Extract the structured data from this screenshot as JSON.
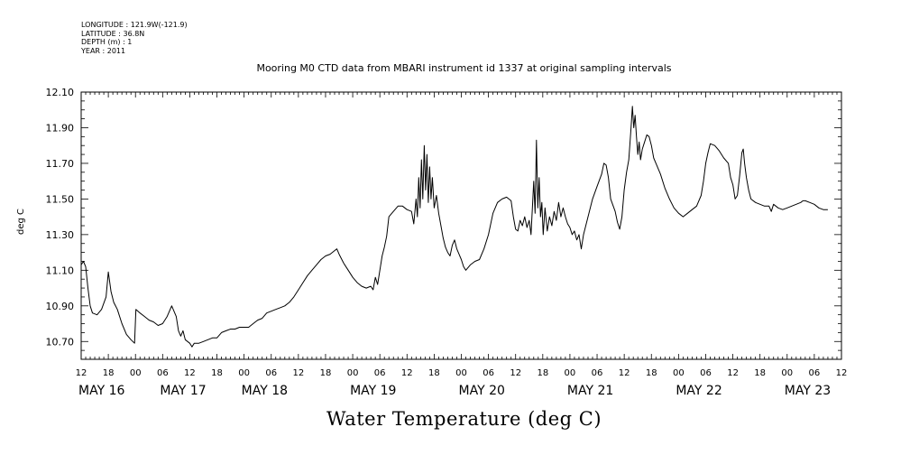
{
  "meta": {
    "longitude": "LONGITUDE : 121.9W(-121.9)",
    "latitude": "LATITUDE : 36.8N",
    "depth": "DEPTH (m) : 1",
    "year": "YEAR : 2011"
  },
  "chart_data": {
    "type": "line",
    "title": "Mooring M0 CTD data from MBARI instrument id 1337 at original sampling intervals",
    "xlabel": "Water Temperature (deg C)",
    "ylabel": "deg C",
    "ylim": [
      10.6,
      12.1
    ],
    "yticks": [
      "10.70",
      "10.90",
      "11.10",
      "11.30",
      "11.50",
      "11.70",
      "11.90",
      "12.10"
    ],
    "xlim_hours": [
      0,
      168
    ],
    "xtick_hour_labels": [
      "12",
      "18",
      "00",
      "06",
      "12",
      "18",
      "00",
      "06",
      "12",
      "18",
      "00",
      "06",
      "12",
      "18",
      "00",
      "06",
      "12",
      "18",
      "00",
      "06",
      "12",
      "18",
      "00",
      "06",
      "12",
      "18",
      "00",
      "06",
      "12"
    ],
    "date_labels": [
      {
        "label": "MAY 16",
        "hour": 0
      },
      {
        "label": "MAY 17",
        "hour": 18
      },
      {
        "label": "MAY 18",
        "hour": 36
      },
      {
        "label": "MAY 19",
        "hour": 60
      },
      {
        "label": "MAY 20",
        "hour": 84
      },
      {
        "label": "MAY 21",
        "hour": 108
      },
      {
        "label": "MAY 22",
        "hour": 132
      },
      {
        "label": "MAY 23",
        "hour": 156
      }
    ],
    "grid": false,
    "series": [
      {
        "color": "#000000",
        "points": [
          [
            0,
            11.13
          ],
          [
            0.5,
            11.15
          ],
          [
            1,
            11.12
          ],
          [
            1.5,
            11.0
          ],
          [
            2,
            10.9
          ],
          [
            2.5,
            10.86
          ],
          [
            3.5,
            10.85
          ],
          [
            4.5,
            10.88
          ],
          [
            5.5,
            10.95
          ],
          [
            6,
            11.09
          ],
          [
            6.6,
            10.98
          ],
          [
            7.2,
            10.92
          ],
          [
            8,
            10.88
          ],
          [
            9,
            10.8
          ],
          [
            10,
            10.74
          ],
          [
            11,
            10.71
          ],
          [
            11.8,
            10.69
          ],
          [
            12.1,
            10.88
          ],
          [
            13,
            10.86
          ],
          [
            14,
            10.84
          ],
          [
            15,
            10.82
          ],
          [
            16,
            10.81
          ],
          [
            17,
            10.79
          ],
          [
            18,
            10.8
          ],
          [
            19,
            10.84
          ],
          [
            20,
            10.9
          ],
          [
            21,
            10.84
          ],
          [
            21.5,
            10.76
          ],
          [
            22,
            10.73
          ],
          [
            22.5,
            10.76
          ],
          [
            23,
            10.71
          ],
          [
            24,
            10.69
          ],
          [
            24.5,
            10.67
          ],
          [
            25,
            10.69
          ],
          [
            26,
            10.69
          ],
          [
            27,
            10.7
          ],
          [
            28,
            10.71
          ],
          [
            29,
            10.72
          ],
          [
            30,
            10.72
          ],
          [
            31,
            10.75
          ],
          [
            32,
            10.76
          ],
          [
            33,
            10.77
          ],
          [
            34,
            10.77
          ],
          [
            35,
            10.78
          ],
          [
            36,
            10.78
          ],
          [
            37,
            10.78
          ],
          [
            38,
            10.8
          ],
          [
            39,
            10.82
          ],
          [
            40,
            10.83
          ],
          [
            41,
            10.86
          ],
          [
            42,
            10.87
          ],
          [
            43,
            10.88
          ],
          [
            44,
            10.89
          ],
          [
            45,
            10.9
          ],
          [
            46,
            10.92
          ],
          [
            47,
            10.95
          ],
          [
            48,
            10.99
          ],
          [
            49,
            11.03
          ],
          [
            50,
            11.07
          ],
          [
            51,
            11.1
          ],
          [
            52,
            11.13
          ],
          [
            53,
            11.16
          ],
          [
            54,
            11.18
          ],
          [
            55,
            11.19
          ],
          [
            56,
            11.21
          ],
          [
            56.5,
            11.22
          ],
          [
            57,
            11.19
          ],
          [
            58,
            11.14
          ],
          [
            59,
            11.1
          ],
          [
            60,
            11.06
          ],
          [
            61,
            11.03
          ],
          [
            62,
            11.01
          ],
          [
            63,
            11.0
          ],
          [
            64,
            11.01
          ],
          [
            64.5,
            10.99
          ],
          [
            65,
            11.06
          ],
          [
            65.5,
            11.02
          ],
          [
            66,
            11.1
          ],
          [
            66.5,
            11.18
          ],
          [
            67,
            11.23
          ],
          [
            67.5,
            11.29
          ],
          [
            68,
            11.4
          ],
          [
            69,
            11.43
          ],
          [
            70,
            11.46
          ],
          [
            71,
            11.46
          ],
          [
            72,
            11.44
          ],
          [
            73,
            11.43
          ],
          [
            73.5,
            11.36
          ],
          [
            74,
            11.5
          ],
          [
            74.3,
            11.4
          ],
          [
            74.6,
            11.62
          ],
          [
            74.9,
            11.45
          ],
          [
            75.2,
            11.72
          ],
          [
            75.5,
            11.5
          ],
          [
            75.8,
            11.8
          ],
          [
            76.1,
            11.55
          ],
          [
            76.4,
            11.75
          ],
          [
            76.7,
            11.48
          ],
          [
            77,
            11.68
          ],
          [
            77.3,
            11.5
          ],
          [
            77.6,
            11.62
          ],
          [
            78,
            11.45
          ],
          [
            78.5,
            11.52
          ],
          [
            79,
            11.42
          ],
          [
            79.5,
            11.35
          ],
          [
            80,
            11.28
          ],
          [
            80.5,
            11.23
          ],
          [
            81,
            11.2
          ],
          [
            81.5,
            11.18
          ],
          [
            82,
            11.24
          ],
          [
            82.5,
            11.27
          ],
          [
            83,
            11.22
          ],
          [
            84,
            11.16
          ],
          [
            84.5,
            11.12
          ],
          [
            85,
            11.1
          ],
          [
            86,
            11.13
          ],
          [
            87,
            11.15
          ],
          [
            88,
            11.16
          ],
          [
            89,
            11.22
          ],
          [
            90,
            11.3
          ],
          [
            91,
            11.42
          ],
          [
            92,
            11.48
          ],
          [
            93,
            11.5
          ],
          [
            94,
            11.51
          ],
          [
            95,
            11.49
          ],
          [
            95.5,
            11.4
          ],
          [
            96,
            11.33
          ],
          [
            96.5,
            11.32
          ],
          [
            97,
            11.38
          ],
          [
            97.5,
            11.35
          ],
          [
            98,
            11.4
          ],
          [
            98.5,
            11.34
          ],
          [
            99,
            11.38
          ],
          [
            99.4,
            11.3
          ],
          [
            99.7,
            11.45
          ],
          [
            100,
            11.6
          ],
          [
            100.3,
            11.42
          ],
          [
            100.6,
            11.83
          ],
          [
            100.9,
            11.45
          ],
          [
            101.2,
            11.62
          ],
          [
            101.5,
            11.4
          ],
          [
            101.8,
            11.48
          ],
          [
            102.1,
            11.3
          ],
          [
            102.5,
            11.45
          ],
          [
            103,
            11.32
          ],
          [
            103.5,
            11.4
          ],
          [
            104,
            11.35
          ],
          [
            104.5,
            11.43
          ],
          [
            105,
            11.38
          ],
          [
            105.5,
            11.48
          ],
          [
            106,
            11.4
          ],
          [
            106.5,
            11.45
          ],
          [
            107,
            11.4
          ],
          [
            107.5,
            11.36
          ],
          [
            108,
            11.34
          ],
          [
            108.5,
            11.3
          ],
          [
            109,
            11.32
          ],
          [
            109.5,
            11.27
          ],
          [
            110,
            11.3
          ],
          [
            110.5,
            11.22
          ],
          [
            111,
            11.3
          ],
          [
            112,
            11.4
          ],
          [
            113,
            11.5
          ],
          [
            114,
            11.57
          ],
          [
            115,
            11.64
          ],
          [
            115.5,
            11.7
          ],
          [
            116,
            11.69
          ],
          [
            116.5,
            11.62
          ],
          [
            117,
            11.5
          ],
          [
            118,
            11.43
          ],
          [
            118.5,
            11.37
          ],
          [
            119,
            11.33
          ],
          [
            119.5,
            11.4
          ],
          [
            120,
            11.55
          ],
          [
            120.5,
            11.65
          ],
          [
            121,
            11.72
          ],
          [
            121.5,
            11.9
          ],
          [
            121.8,
            12.02
          ],
          [
            122.1,
            11.9
          ],
          [
            122.4,
            11.97
          ],
          [
            122.7,
            11.85
          ],
          [
            123,
            11.75
          ],
          [
            123.3,
            11.82
          ],
          [
            123.6,
            11.72
          ],
          [
            124,
            11.78
          ],
          [
            124.5,
            11.82
          ],
          [
            125,
            11.86
          ],
          [
            125.5,
            11.85
          ],
          [
            126,
            11.8
          ],
          [
            126.5,
            11.73
          ],
          [
            127,
            11.7
          ],
          [
            128,
            11.64
          ],
          [
            129,
            11.56
          ],
          [
            130,
            11.5
          ],
          [
            131,
            11.45
          ],
          [
            132,
            11.42
          ],
          [
            133,
            11.4
          ],
          [
            134,
            11.42
          ],
          [
            135,
            11.44
          ],
          [
            136,
            11.46
          ],
          [
            137,
            11.52
          ],
          [
            137.5,
            11.6
          ],
          [
            138,
            11.7
          ],
          [
            138.5,
            11.76
          ],
          [
            139,
            11.81
          ],
          [
            140,
            11.8
          ],
          [
            141,
            11.77
          ],
          [
            142,
            11.73
          ],
          [
            143,
            11.7
          ],
          [
            143.5,
            11.62
          ],
          [
            144,
            11.58
          ],
          [
            144.5,
            11.5
          ],
          [
            145,
            11.52
          ],
          [
            145.5,
            11.63
          ],
          [
            146,
            11.76
          ],
          [
            146.3,
            11.78
          ],
          [
            146.6,
            11.7
          ],
          [
            147,
            11.62
          ],
          [
            147.5,
            11.55
          ],
          [
            148,
            11.5
          ],
          [
            149,
            11.48
          ],
          [
            150,
            11.47
          ],
          [
            151,
            11.46
          ],
          [
            152,
            11.46
          ],
          [
            152.5,
            11.43
          ],
          [
            153,
            11.47
          ],
          [
            154,
            11.45
          ],
          [
            155,
            11.44
          ],
          [
            156,
            11.45
          ],
          [
            157,
            11.46
          ],
          [
            158,
            11.47
          ],
          [
            159,
            11.48
          ],
          [
            159.5,
            11.49
          ],
          [
            160,
            11.49
          ],
          [
            161,
            11.48
          ],
          [
            162,
            11.47
          ],
          [
            163,
            11.45
          ],
          [
            164,
            11.44
          ],
          [
            165,
            11.44
          ]
        ]
      }
    ]
  }
}
